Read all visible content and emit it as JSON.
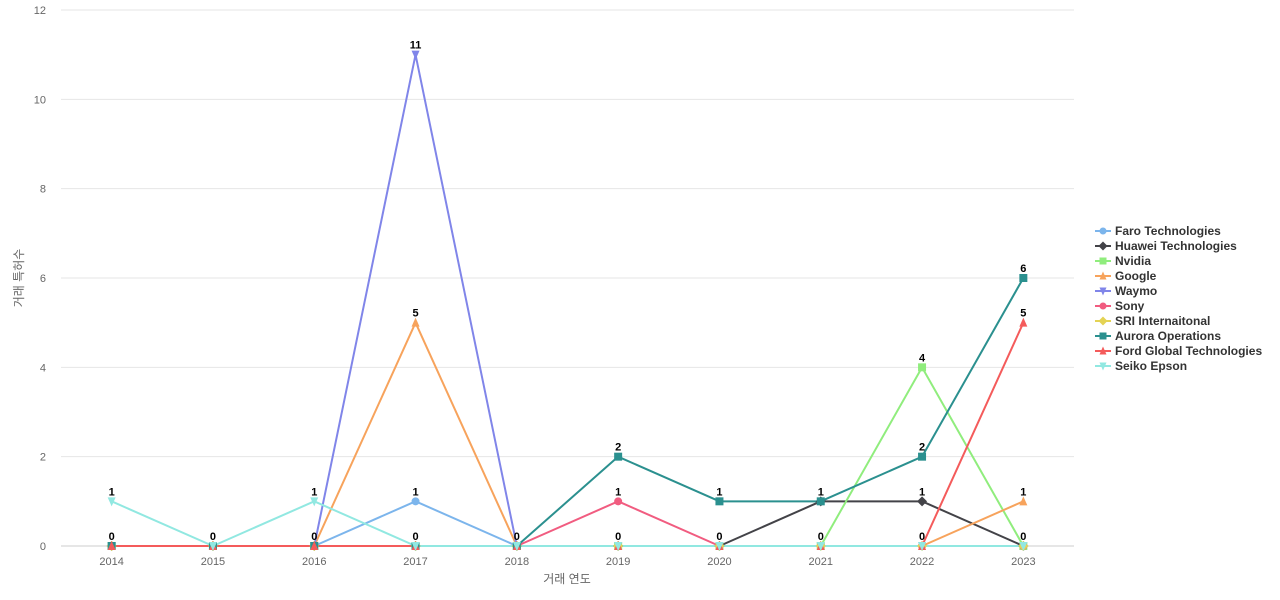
{
  "chart_data": {
    "type": "line",
    "title": "",
    "xlabel": "거래 연도",
    "ylabel": "거래 특허수",
    "x": [
      "2014",
      "2015",
      "2016",
      "2017",
      "2018",
      "2019",
      "2020",
      "2021",
      "2022",
      "2023"
    ],
    "ylim": [
      0,
      12
    ],
    "yticks": [
      0,
      2,
      4,
      6,
      8,
      10,
      12
    ],
    "grid": true,
    "legend_position": "right",
    "series": [
      {
        "name": "Faro Technologies",
        "color": "#7cb5ec",
        "marker": "circle",
        "values": [
          0,
          0,
          0,
          1,
          0,
          0,
          0,
          0,
          0,
          0
        ]
      },
      {
        "name": "Huawei Technologies",
        "color": "#434348",
        "marker": "diamond",
        "values": [
          0,
          0,
          0,
          0,
          0,
          0,
          0,
          1,
          1,
          0
        ]
      },
      {
        "name": "Nvidia",
        "color": "#90ed7d",
        "marker": "square",
        "values": [
          0,
          0,
          0,
          0,
          0,
          0,
          0,
          0,
          4,
          0
        ]
      },
      {
        "name": "Google",
        "color": "#f7a35c",
        "marker": "triangle",
        "values": [
          0,
          0,
          0,
          5,
          0,
          0,
          0,
          0,
          0,
          1
        ]
      },
      {
        "name": "Waymo",
        "color": "#8085e9",
        "marker": "triangle-down",
        "values": [
          0,
          0,
          0,
          11,
          0,
          0,
          0,
          0,
          0,
          0
        ]
      },
      {
        "name": "Sony",
        "color": "#f15c80",
        "marker": "circle",
        "values": [
          0,
          0,
          0,
          0,
          0,
          1,
          0,
          0,
          0,
          0
        ]
      },
      {
        "name": "SRI Internaitonal",
        "color": "#e4d354",
        "marker": "diamond",
        "values": [
          0,
          0,
          0,
          0,
          0,
          0,
          0,
          0,
          0,
          0
        ]
      },
      {
        "name": "Aurora Operations",
        "color": "#2b908f",
        "marker": "square",
        "values": [
          0,
          0,
          0,
          0,
          0,
          2,
          1,
          1,
          2,
          6
        ]
      },
      {
        "name": "Ford Global Technologies",
        "color": "#f45b5b",
        "marker": "triangle",
        "values": [
          0,
          0,
          0,
          0,
          0,
          0,
          0,
          0,
          0,
          5
        ]
      },
      {
        "name": "Seiko Epson",
        "color": "#91e8e1",
        "marker": "triangle-down",
        "values": [
          1,
          0,
          1,
          0,
          0,
          0,
          0,
          0,
          0,
          0
        ]
      }
    ],
    "data_labels": [
      {
        "x": "2014",
        "text": "1",
        "y": 1
      },
      {
        "x": "2014",
        "text": "0",
        "y": 0
      },
      {
        "x": "2015",
        "text": "0",
        "y": 0
      },
      {
        "x": "2016",
        "text": "1",
        "y": 1
      },
      {
        "x": "2016",
        "text": "0",
        "y": 0
      },
      {
        "x": "2017",
        "text": "11",
        "y": 11
      },
      {
        "x": "2017",
        "text": "5",
        "y": 5
      },
      {
        "x": "2017",
        "text": "1",
        "y": 1
      },
      {
        "x": "2017",
        "text": "0",
        "y": 0
      },
      {
        "x": "2018",
        "text": "0",
        "y": 0
      },
      {
        "x": "2019",
        "text": "2",
        "y": 2
      },
      {
        "x": "2019",
        "text": "1",
        "y": 1
      },
      {
        "x": "2019",
        "text": "0",
        "y": 0
      },
      {
        "x": "2020",
        "text": "1",
        "y": 1
      },
      {
        "x": "2020",
        "text": "0",
        "y": 0
      },
      {
        "x": "2021",
        "text": "1",
        "y": 1
      },
      {
        "x": "2021",
        "text": "0",
        "y": 0
      },
      {
        "x": "2022",
        "text": "4",
        "y": 4
      },
      {
        "x": "2022",
        "text": "2",
        "y": 2
      },
      {
        "x": "2022",
        "text": "1",
        "y": 1
      },
      {
        "x": "2022",
        "text": "0",
        "y": 0
      },
      {
        "x": "2023",
        "text": "6",
        "y": 6
      },
      {
        "x": "2023",
        "text": "5",
        "y": 5
      },
      {
        "x": "2023",
        "text": "1",
        "y": 1
      },
      {
        "x": "2023",
        "text": "0",
        "y": 0
      }
    ]
  }
}
